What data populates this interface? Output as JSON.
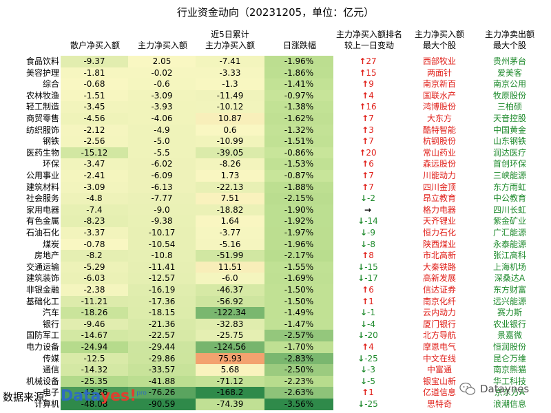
{
  "title": "行业资金动向（20231205，单位：亿元）",
  "source_label": "数据来源:",
  "brand": {
    "part1": "Data",
    "part2": "yes!",
    "sup": "pro"
  },
  "watermark": "Dataynes",
  "headers": {
    "retail": "散户净买入额",
    "main": "主力净买入额",
    "main5_line1": "近5日累计",
    "main5_line2": "主力净买入额",
    "change": "日涨跌幅",
    "rank_line1": "主力净买入额排名",
    "rank_line2": "较上一日变动",
    "top_buy_line1": "主力净买入额",
    "top_buy_line2": "最大个股",
    "top_sell_line1": "主力净卖出额",
    "top_sell_line2": "最大个股"
  },
  "colors": {
    "up": "#e0201a",
    "down": "#1e8a2c",
    "flat": "#000000",
    "stock_buy": "#e0201a",
    "stock_sell": "#1e8a2c",
    "scale_low": "#2f8a4a",
    "scale_mid": "#f9f7c2",
    "scale_high": "#f3a26f"
  },
  "chart_data": {
    "type": "table",
    "columns": [
      "行业",
      "散户净买入额",
      "主力净买入额",
      "近5日累计主力净买入额",
      "日涨跌幅",
      "主力净买入额排名较上一日变动",
      "主力净买入额最大个股",
      "主力净卖出额最大个股"
    ],
    "rows": [
      {
        "industry": "食品饮料",
        "retail": "-9.37",
        "main": "2.05",
        "main5": "-7.41",
        "change": "-1.96%",
        "rank_dir": "up",
        "rank": "27",
        "buy": "西部牧业",
        "sell": "贵州茅台"
      },
      {
        "industry": "美容护理",
        "retail": "-1.81",
        "main": "-0.02",
        "main5": "-3.33",
        "change": "-1.86%",
        "rank_dir": "up",
        "rank": "15",
        "buy": "两面针",
        "sell": "爱美客"
      },
      {
        "industry": "综合",
        "retail": "-0.68",
        "main": "-0.6",
        "main5": "-1.3",
        "change": "-1.41%",
        "rank_dir": "up",
        "rank": "9",
        "buy": "南京新百",
        "sell": "南京公用"
      },
      {
        "industry": "农林牧渔",
        "retail": "-1.51",
        "main": "-3.09",
        "main5": "-11.49",
        "change": "-0.97%",
        "rank_dir": "up",
        "rank": "4",
        "buy": "国联水产",
        "sell": "牧原股份"
      },
      {
        "industry": "轻工制造",
        "retail": "-3.45",
        "main": "-3.93",
        "main5": "-10.12",
        "change": "-1.38%",
        "rank_dir": "up",
        "rank": "16",
        "buy": "鸿博股份",
        "sell": "三柏硕"
      },
      {
        "industry": "商贸零售",
        "retail": "-4.56",
        "main": "-4.06",
        "main5": "10.87",
        "change": "-1.62%",
        "rank_dir": "up",
        "rank": "7",
        "buy": "大东方",
        "sell": "天音控股"
      },
      {
        "industry": "纺织服饰",
        "retail": "-2.12",
        "main": "-4.9",
        "main5": "0.6",
        "change": "-1.32%",
        "rank_dir": "up",
        "rank": "3",
        "buy": "酷特智能",
        "sell": "中国黄金"
      },
      {
        "industry": "钢铁",
        "retail": "-2.56",
        "main": "-5.0",
        "main5": "-10.99",
        "change": "-1.51%",
        "rank_dir": "up",
        "rank": "7",
        "buy": "杭钢股份",
        "sell": "山东钢铁"
      },
      {
        "industry": "医药生物",
        "retail": "-15.12",
        "main": "-5.5",
        "main5": "-39.05",
        "change": "-0.86%",
        "rank_dir": "up",
        "rank": "20",
        "buy": "常山药业",
        "sell": "润达医疗"
      },
      {
        "industry": "环保",
        "retail": "-3.47",
        "main": "-6.02",
        "main5": "-8.26",
        "change": "-1.53%",
        "rank_dir": "up",
        "rank": "6",
        "buy": "森远股份",
        "sell": "首创环保"
      },
      {
        "industry": "公用事业",
        "retail": "-2.41",
        "main": "-6.09",
        "main5": "1.73",
        "change": "-0.87%",
        "rank_dir": "up",
        "rank": "7",
        "buy": "川能动力",
        "sell": "三峡能源"
      },
      {
        "industry": "建筑材料",
        "retail": "-3.09",
        "main": "-6.13",
        "main5": "-22.13",
        "change": "-1.88%",
        "rank_dir": "up",
        "rank": "7",
        "buy": "四川金顶",
        "sell": "东方雨虹"
      },
      {
        "industry": "社会服务",
        "retail": "-4.8",
        "main": "-7.77",
        "main5": "7.51",
        "change": "-2.15%",
        "rank_dir": "down",
        "rank": "-2",
        "buy": "昂立教育",
        "sell": "中公教育"
      },
      {
        "industry": "家用电器",
        "retail": "-7.4",
        "main": "-9.0",
        "main5": "-18.82",
        "change": "-1.90%",
        "rank_dir": "flat",
        "rank": "",
        "buy": "格力电器",
        "sell": "四川长虹"
      },
      {
        "industry": "有色金属",
        "retail": "-8.23",
        "main": "-9.38",
        "main5": "1.64",
        "change": "-1.92%",
        "rank_dir": "down",
        "rank": "-14",
        "buy": "天齐锂业",
        "sell": "紫金矿业"
      },
      {
        "industry": "石油石化",
        "retail": "-3.37",
        "main": "-10.17",
        "main5": "-3.77",
        "change": "-1.97%",
        "rank_dir": "down",
        "rank": "-9",
        "buy": "恒力石化",
        "sell": "广汇能源"
      },
      {
        "industry": "煤炭",
        "retail": "-0.78",
        "main": "-10.54",
        "main5": "-5.16",
        "change": "-1.96%",
        "rank_dir": "down",
        "rank": "-8",
        "buy": "陕西煤业",
        "sell": "永泰能源"
      },
      {
        "industry": "房地产",
        "retail": "-8.2",
        "main": "-10.8",
        "main5": "-51.99",
        "change": "-2.17%",
        "rank_dir": "up",
        "rank": "8",
        "buy": "市北高新",
        "sell": "张江高科"
      },
      {
        "industry": "交通运输",
        "retail": "-5.29",
        "main": "-11.41",
        "main5": "11.51",
        "change": "-1.55%",
        "rank_dir": "down",
        "rank": "-15",
        "buy": "大秦铁路",
        "sell": "上海机场"
      },
      {
        "industry": "建筑装饰",
        "retail": "-6.03",
        "main": "-12.57",
        "main5": "-6.0",
        "change": "-1.69%",
        "rank_dir": "down",
        "rank": "-17",
        "buy": "高新发展",
        "sell": "深桑达A"
      },
      {
        "industry": "非银金融",
        "retail": "-2.38",
        "main": "-16.19",
        "main5": "-46.37",
        "change": "-1.50%",
        "rank_dir": "up",
        "rank": "6",
        "buy": "信达证券",
        "sell": "东方财富"
      },
      {
        "industry": "基础化工",
        "retail": "-11.21",
        "main": "-17.36",
        "main5": "-56.92",
        "change": "-1.50%",
        "rank_dir": "up",
        "rank": "1",
        "buy": "南京化纤",
        "sell": "远兴能源"
      },
      {
        "industry": "汽车",
        "retail": "-18.26",
        "main": "-18.15",
        "main5": "-122.34",
        "change": "-1.49%",
        "rank_dir": "down",
        "rank": "-1",
        "buy": "云内动力",
        "sell": "赛力斯"
      },
      {
        "industry": "银行",
        "retail": "-9.46",
        "main": "-21.36",
        "main5": "-32.83",
        "change": "-1.47%",
        "rank_dir": "down",
        "rank": "-4",
        "buy": "厦门银行",
        "sell": "农业银行"
      },
      {
        "industry": "国防军工",
        "retail": "-14.67",
        "main": "-22.57",
        "main5": "-25.75",
        "change": "-2.57%",
        "rank_dir": "down",
        "rank": "-20",
        "buy": "北方导航",
        "sell": "景嘉微"
      },
      {
        "industry": "电力设备",
        "retail": "-24.94",
        "main": "-29.44",
        "main5": "-124.56",
        "change": "-1.70%",
        "rank_dir": "up",
        "rank": "4",
        "buy": "摩恩电气",
        "sell": "恒润股份"
      },
      {
        "industry": "传媒",
        "retail": "-12.5",
        "main": "-29.86",
        "main5": "75.93",
        "change": "-2.83%",
        "rank_dir": "down",
        "rank": "-25",
        "buy": "中文在线",
        "sell": "昆仑万维"
      },
      {
        "industry": "通信",
        "retail": "-14.32",
        "main": "-33.57",
        "main5": "5.68",
        "change": "-2.50%",
        "rank_dir": "down",
        "rank": "-3",
        "buy": "中富通",
        "sell": "南京熊猫"
      },
      {
        "industry": "机械设备",
        "retail": "-25.35",
        "main": "-41.88",
        "main5": "-71.12",
        "change": "-2.23%",
        "rank_dir": "down",
        "rank": "-5",
        "buy": "银宝山新",
        "sell": "华工科技"
      },
      {
        "industry": "电子",
        "retail": "-43.26",
        "main": "-76.26",
        "main5": "-168.2",
        "change": "-2.63%",
        "rank_dir": "up",
        "rank": "1",
        "buy": "亿道信息",
        "sell": "京东方A"
      },
      {
        "industry": "计算机",
        "retail": "-48.08",
        "main": "-90.59",
        "main5": "-74.39",
        "change": "-3.56%",
        "rank_dir": "down",
        "rank": "-25",
        "buy": "思特奇",
        "sell": "浪潮信息"
      }
    ]
  }
}
